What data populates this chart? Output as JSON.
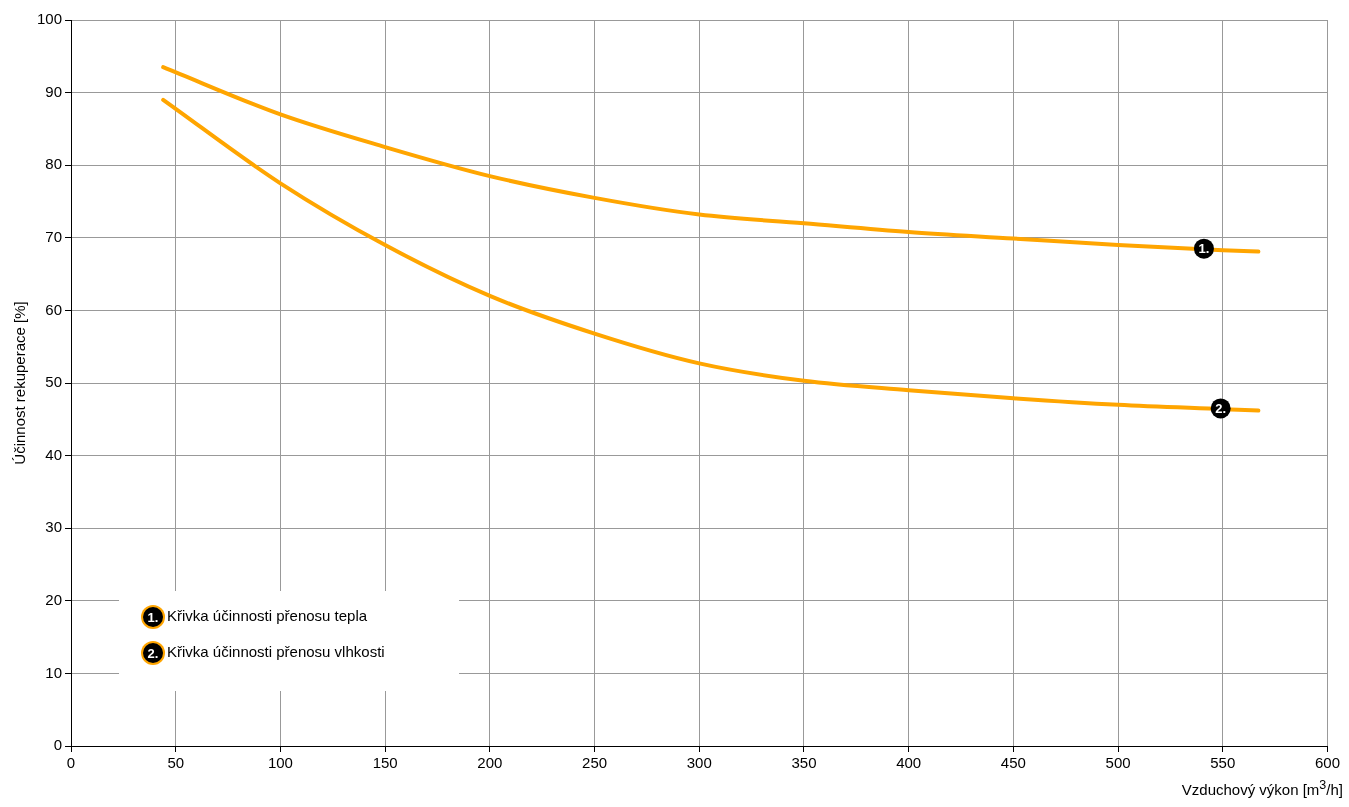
{
  "chart_data": {
    "type": "line",
    "xlabel": "Vzduchový výkon [m$^{3}$/h]",
    "ylabel": "Účinnost rekuperace [%]",
    "xlim": [
      0,
      600
    ],
    "xticks": [
      0,
      50,
      100,
      150,
      200,
      250,
      300,
      350,
      400,
      450,
      500,
      550,
      600
    ],
    "ylim": [
      0,
      100
    ],
    "yticks": [
      0,
      10,
      20,
      30,
      40,
      50,
      60,
      70,
      80,
      90,
      100
    ],
    "grid": true,
    "legend": "bottom left",
    "marker": "none",
    "line_style": "solid",
    "series": [
      {
        "name": "Křivka účinnosti přenosu tepla",
        "color": "#ffa500",
        "x": [
          44,
          100,
          150,
          200,
          250,
          300,
          350,
          400,
          450,
          500,
          550,
          567
        ],
        "values": [
          93.5,
          87,
          82.5,
          78.5,
          75.5,
          73.2,
          72,
          70.8,
          69.9,
          69,
          68.3,
          68.1
        ]
      },
      {
        "name": "Křivka účinnosti přenosu vlhkosti",
        "color": "#ffa500",
        "x": [
          44,
          100,
          150,
          200,
          250,
          300,
          350,
          400,
          450,
          500,
          550,
          567
        ],
        "values": [
          89,
          77.5,
          69,
          62,
          56.8,
          52.7,
          50.3,
          49,
          47.9,
          47,
          46.4,
          46.2
        ]
      }
    ],
    "annotations": [
      {
        "text": "1.",
        "x": 541,
        "y": 68.5
      },
      {
        "text": "2.",
        "x": 549,
        "y": 46.5
      }
    ]
  }
}
